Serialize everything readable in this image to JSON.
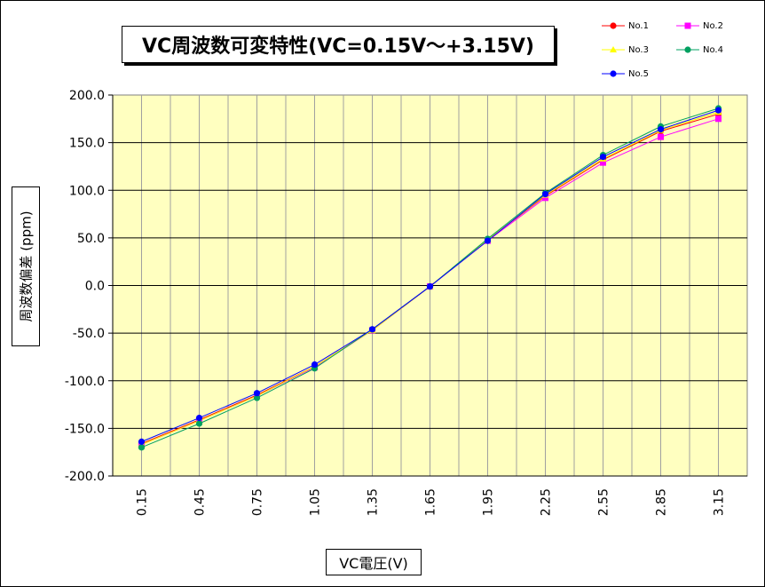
{
  "chart_data": {
    "type": "line",
    "title": "VC周波数可変特性(VC=0.15V～+3.15V)",
    "xlabel": "VC電圧(V)",
    "ylabel": "周波数偏差 (ppm)",
    "categories": [
      "0.15",
      "0.45",
      "0.75",
      "1.05",
      "1.35",
      "1.65",
      "1.95",
      "2.25",
      "2.55",
      "2.85",
      "3.15"
    ],
    "ylim": [
      -200,
      200
    ],
    "ytick_labels": [
      "200.0",
      "150.0",
      "100.0",
      "50.0",
      "0.0",
      "-50.0",
      "-100.0",
      "-150.0",
      "-200.0"
    ],
    "ytick_values": [
      200,
      150,
      100,
      50,
      0,
      -50,
      -100,
      -150,
      -200
    ],
    "grid": true,
    "legend_position": "top-right",
    "series": [
      {
        "name": "No.1",
        "color": "#ff0000",
        "marker": "circle",
        "values": [
          -166,
          -141,
          -115,
          -85,
          -47,
          -1,
          48,
          94,
          132,
          162,
          180
        ]
      },
      {
        "name": "No.2",
        "color": "#ff00ff",
        "marker": "square",
        "values": [
          -167,
          -142,
          -116,
          -86,
          -47,
          -1,
          47,
          92,
          129,
          156,
          175
        ]
      },
      {
        "name": "No.3",
        "color": "#ffff00",
        "marker": "triangle",
        "values": [
          -167,
          -142,
          -116,
          -85,
          -47,
          -1,
          48,
          95,
          133,
          163,
          182
        ]
      },
      {
        "name": "No.4",
        "color": "#00a060",
        "marker": "circle",
        "values": [
          -170,
          -145,
          -118,
          -87,
          -46,
          -1,
          49,
          97,
          137,
          167,
          186
        ]
      },
      {
        "name": "No.5",
        "color": "#0000ff",
        "marker": "circle",
        "values": [
          -164,
          -139,
          -113,
          -83,
          -46,
          -1,
          47,
          96,
          135,
          164,
          184
        ]
      }
    ]
  }
}
